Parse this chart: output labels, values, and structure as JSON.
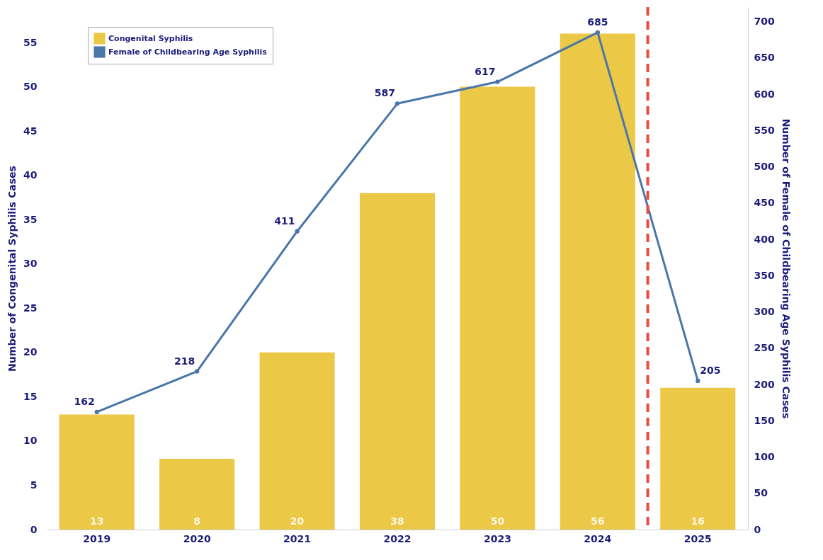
{
  "chart_data": {
    "type": "bar",
    "categories": [
      "2019",
      "2020",
      "2021",
      "2022",
      "2023",
      "2024",
      "2025"
    ],
    "ylabel": "Number of Congenital Syphilis Cases",
    "y2label": "Number of Female of Childbearing Age Syphilis Cases",
    "series": [
      {
        "name": "Congenital Syphilis",
        "color": "#ebc845",
        "values": [
          13,
          8,
          20,
          38,
          50,
          56,
          16
        ]
      },
      {
        "name": "Female of Childbearing Age Syphilis",
        "type": "line",
        "axis": "y2",
        "color": "#4a76aa",
        "marker": "circle",
        "values": [
          162,
          218,
          411,
          587,
          617,
          685,
          205
        ]
      }
    ],
    "ylim": [
      0,
      59
    ],
    "yticks": [
      0,
      5,
      10,
      15,
      20,
      25,
      30,
      35,
      40,
      45,
      50,
      55
    ],
    "y2lim": [
      0,
      720
    ],
    "y2ticks": [
      0,
      50,
      100,
      150,
      200,
      250,
      300,
      350,
      400,
      450,
      500,
      550,
      600,
      650,
      700
    ],
    "ref_lines": [
      {
        "axis": "x",
        "value": "2024",
        "color": "#ec4a3c",
        "line_style": "dashed"
      }
    ],
    "data_labels": true,
    "grid": false,
    "legend": "top left"
  }
}
